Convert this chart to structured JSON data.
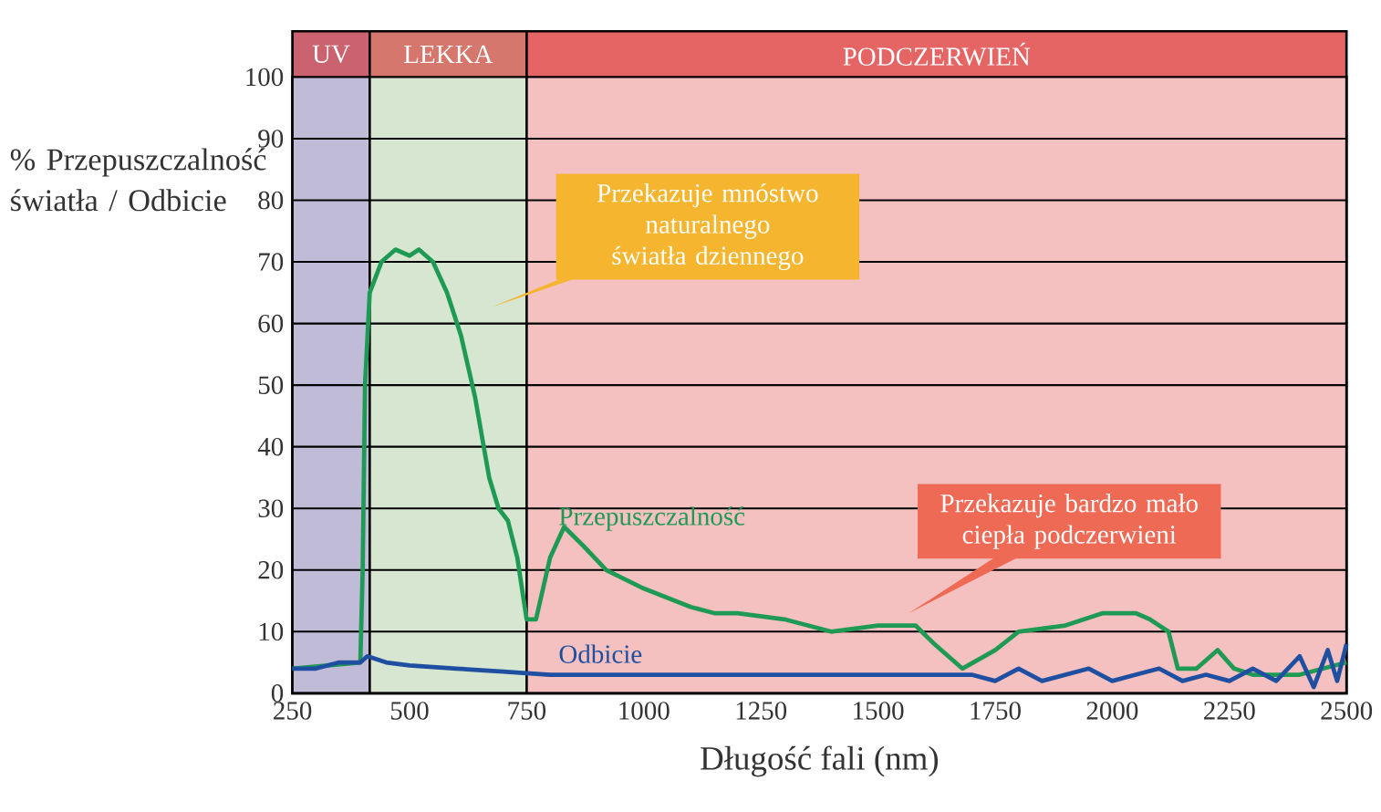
{
  "chart_data": {
    "type": "line",
    "xlabel": "Długość fali (nm)",
    "ylabel": "% Przepuszczalność światła / Odbicie",
    "xlim": [
      250,
      2500
    ],
    "ylim": [
      0,
      100
    ],
    "xticks": [
      250,
      500,
      750,
      1000,
      1250,
      1500,
      1750,
      2000,
      2250,
      2500
    ],
    "yticks": [
      0,
      10,
      20,
      30,
      40,
      50,
      60,
      70,
      80,
      90,
      100
    ],
    "grid": "y",
    "bands": [
      {
        "axis": "x",
        "from": 250,
        "to": 415,
        "label": "UV",
        "color": "#c0bcd8"
      },
      {
        "axis": "x",
        "from": 415,
        "to": 750,
        "label": "LEKKA",
        "color": "#d6e6d0"
      },
      {
        "axis": "x",
        "from": 750,
        "to": 2500,
        "label": "PODCZERWIEŃ",
        "color": "#f5c0c0"
      }
    ],
    "series": [
      {
        "name": "Przepuszczalność",
        "color": "#1e9a55",
        "x": [
          250,
          395,
          400,
          405,
          415,
          440,
          470,
          500,
          520,
          550,
          580,
          610,
          640,
          670,
          690,
          710,
          730,
          750,
          770,
          800,
          830,
          870,
          920,
          1000,
          1100,
          1150,
          1200,
          1300,
          1400,
          1500,
          1580,
          1620,
          1680,
          1750,
          1800,
          1900,
          1980,
          2050,
          2080,
          2120,
          2140,
          2180,
          2225,
          2260,
          2300,
          2400,
          2500
        ],
        "values": [
          4,
          5,
          20,
          50,
          65,
          70,
          72,
          71,
          72,
          70,
          65,
          58,
          48,
          35,
          30,
          28,
          22,
          12,
          12,
          22,
          27,
          24,
          20,
          17,
          14,
          13,
          13,
          12,
          10,
          11,
          11,
          8,
          4,
          7,
          10,
          11,
          13,
          13,
          12,
          10,
          4,
          4,
          7,
          4,
          3,
          3,
          5
        ]
      },
      {
        "name": "Odbicie",
        "color": "#1f4fa0",
        "x": [
          250,
          300,
          350,
          395,
          410,
          450,
          500,
          600,
          700,
          800,
          1000,
          1200,
          1400,
          1600,
          1700,
          1750,
          1800,
          1850,
          1900,
          1950,
          2000,
          2050,
          2100,
          2150,
          2200,
          2250,
          2300,
          2350,
          2400,
          2430,
          2460,
          2480,
          2500
        ],
        "values": [
          4,
          4,
          5,
          5,
          6,
          5,
          4.5,
          4,
          3.5,
          3,
          3,
          3,
          3,
          3,
          3,
          2,
          4,
          2,
          3,
          4,
          2,
          3,
          4,
          2,
          3,
          2,
          4,
          2,
          6,
          1,
          7,
          2,
          8
        ]
      }
    ],
    "ref_lines": [
      {
        "axis": "x",
        "value": 415,
        "color": "#000000"
      },
      {
        "axis": "x",
        "value": 750,
        "color": "#000000"
      }
    ],
    "annotations": [
      "Przekazuje mnóstwo naturalnego światła dziennego",
      "Przekazuje bardzo mało ciepła podczerwieni"
    ]
  }
}
